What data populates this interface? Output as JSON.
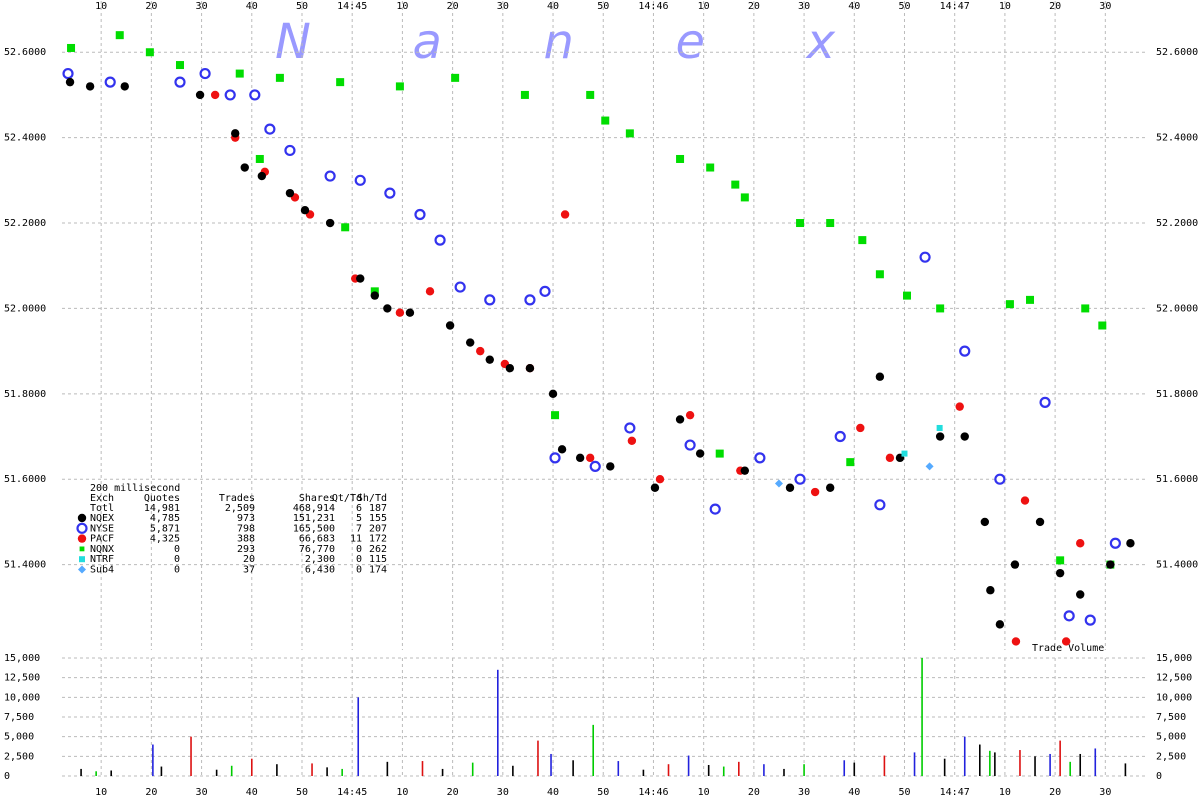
{
  "chart_data": [
    {
      "type": "scatter",
      "watermark": "N a n e x",
      "annotation": "Trade Volume",
      "xlim": [
        2.2,
        218.5
      ],
      "xticks": [
        10,
        20,
        30,
        40,
        50,
        {
          "value": 60,
          "label": "14:45"
        },
        {
          "value": 70,
          "label": "10"
        },
        {
          "value": 80,
          "label": "20"
        },
        {
          "value": 90,
          "label": "30"
        },
        {
          "value": 100,
          "label": "40"
        },
        {
          "value": 110,
          "label": "50"
        },
        {
          "value": 120,
          "label": "14:46"
        },
        {
          "value": 130,
          "label": "10"
        },
        {
          "value": 140,
          "label": "20"
        },
        {
          "value": 150,
          "label": "30"
        },
        {
          "value": 160,
          "label": "40"
        },
        {
          "value": 170,
          "label": "50"
        },
        {
          "value": 180,
          "label": "14:47"
        },
        {
          "value": 190,
          "label": "10"
        },
        {
          "value": 200,
          "label": "20"
        },
        {
          "value": 210,
          "label": "30"
        }
      ],
      "ylim": [
        51.2,
        52.72
      ],
      "yticks": [
        {
          "value": 51.4,
          "label": "51.4000"
        },
        {
          "value": 51.6,
          "label": "51.6000"
        },
        {
          "value": 51.8,
          "label": "51.8000"
        },
        {
          "value": 52.0,
          "label": "52.0000"
        },
        {
          "value": 52.2,
          "label": "52.2000"
        },
        {
          "value": 52.4,
          "label": "52.4000"
        },
        {
          "value": 52.6,
          "label": "52.6000"
        }
      ],
      "grid": true,
      "stats": {
        "caption": "200 millisecond",
        "columns": [
          "Exch",
          "Quotes",
          "Trades",
          "Shares",
          "Qt/Td",
          "Sh/Td"
        ],
        "total": [
          "Totl",
          "14,981",
          "2,509",
          "468,914",
          "6",
          "187"
        ],
        "rows": [
          [
            "4,785",
            "973",
            "151,231",
            "5",
            "155"
          ],
          [
            "5,871",
            "798",
            "165,500",
            "7",
            "207"
          ],
          [
            "4,325",
            "388",
            "66,683",
            "11",
            "172"
          ],
          [
            "0",
            "293",
            "76,770",
            "0",
            "262"
          ],
          [
            "0",
            "20",
            "2,300",
            "0",
            "115"
          ],
          [
            "0",
            "37",
            "6,430",
            "0",
            "174"
          ]
        ]
      },
      "series": [
        {
          "name": "NQNX",
          "color": "#00dd00",
          "marker": "square",
          "x": [
            4,
            13.7,
            19.7,
            25.7,
            37.6,
            45.6,
            57.6,
            69.5,
            80.5,
            94.4,
            107.4,
            110.4,
            115.3,
            125.3,
            131.3,
            136.3,
            138.2,
            149.2,
            155.2,
            161.6,
            165.1,
            170.5,
            177.1,
            191,
            195,
            206,
            209.4,
            41.6,
            58.6,
            64.5,
            100.4,
            133.2,
            159.2,
            201,
            211
          ],
          "values": [
            52.61,
            52.64,
            52.6,
            52.57,
            52.55,
            52.54,
            52.53,
            52.52,
            52.54,
            52.5,
            52.5,
            52.44,
            52.41,
            52.35,
            52.33,
            52.29,
            52.26,
            52.2,
            52.2,
            52.16,
            52.08,
            52.03,
            52.0,
            52.01,
            52.02,
            52.0,
            51.96,
            52.35,
            52.19,
            52.04,
            51.75,
            51.66,
            51.64,
            51.41,
            51.4
          ]
        },
        {
          "name": "PACF",
          "color": "#ee1111",
          "marker": "circle",
          "x": [
            32.7,
            36.7,
            42.6,
            48.6,
            51.6,
            60.6,
            69.5,
            75.5,
            85.5,
            90.4,
            95.4,
            102.4,
            107.4,
            115.7,
            121.3,
            127.3,
            137.3,
            152.2,
            161.2,
            167.1,
            181,
            192.2,
            194,
            202.2,
            205
          ],
          "values": [
            52.5,
            52.4,
            52.32,
            52.26,
            52.22,
            52.07,
            51.99,
            52.04,
            51.9,
            51.87,
            51.86,
            52.22,
            51.65,
            51.69,
            51.6,
            51.75,
            51.62,
            51.57,
            51.72,
            51.65,
            51.77,
            51.22,
            51.55,
            51.22,
            51.45
          ]
        },
        {
          "name": "NYSE",
          "color": "#3333ee",
          "marker": "ring",
          "x": [
            3.4,
            11.8,
            25.7,
            30.7,
            35.7,
            40.6,
            43.6,
            47.6,
            55.6,
            61.6,
            67.5,
            73.5,
            77.5,
            81.5,
            87.4,
            95.4,
            98.4,
            100.4,
            108.4,
            115.3,
            127.3,
            132.3,
            141.2,
            149.2,
            157.2,
            165.1,
            174.1,
            182,
            189,
            198,
            202.8,
            207,
            212
          ],
          "values": [
            52.55,
            52.53,
            52.53,
            52.55,
            52.5,
            52.5,
            52.42,
            52.37,
            52.31,
            52.3,
            52.27,
            52.22,
            52.16,
            52.05,
            52.02,
            52.02,
            52.04,
            51.65,
            51.63,
            51.72,
            51.68,
            51.53,
            51.65,
            51.6,
            51.7,
            51.54,
            52.12,
            51.9,
            51.6,
            51.78,
            51.28,
            51.27,
            51.45
          ]
        },
        {
          "name": "NQEX",
          "color": "#000000",
          "marker": "circle",
          "x": [
            3.8,
            7.8,
            14.7,
            29.7,
            36.7,
            38.6,
            42,
            47.6,
            50.6,
            55.6,
            61.6,
            64.5,
            67,
            71.5,
            79.5,
            83.5,
            87.4,
            91.4,
            95.4,
            100,
            101.8,
            105.4,
            111.4,
            120.3,
            125.3,
            129.3,
            138.2,
            147.2,
            155.2,
            165.1,
            169.1,
            177.1,
            182,
            186,
            187.1,
            189,
            192,
            197,
            201,
            205,
            211,
            215
          ],
          "values": [
            52.53,
            52.52,
            52.52,
            52.5,
            52.41,
            52.33,
            52.31,
            52.27,
            52.23,
            52.2,
            52.07,
            52.03,
            52.0,
            51.99,
            51.96,
            51.92,
            51.88,
            51.86,
            51.86,
            51.8,
            51.67,
            51.65,
            51.63,
            51.58,
            51.74,
            51.66,
            51.62,
            51.58,
            51.58,
            51.84,
            51.65,
            51.7,
            51.7,
            51.5,
            51.34,
            51.26,
            51.4,
            51.5,
            51.38,
            51.33,
            51.4,
            51.45
          ]
        },
        {
          "name": "NTRF",
          "color": "#22dddd",
          "marker": "small-square",
          "x": [
            170,
            177
          ],
          "values": [
            51.66,
            51.72
          ]
        },
        {
          "name": "Sub4",
          "color": "#55aaff",
          "marker": "diamond",
          "x": [
            145,
            175
          ],
          "values": [
            51.59,
            51.63
          ]
        }
      ]
    },
    {
      "type": "bar",
      "ylim": [
        0,
        15000
      ],
      "yticks": [
        0,
        {
          "value": 2500,
          "label": "2,500"
        },
        {
          "value": 5000,
          "label": "5,000"
        },
        {
          "value": 7500,
          "label": "7,500"
        },
        {
          "value": 10000,
          "label": "10,000"
        },
        {
          "value": 12500,
          "label": "12,500"
        },
        {
          "value": 15000,
          "label": "15,000"
        }
      ],
      "series": [
        {
          "color": "#000000",
          "x": [
            6,
            12,
            22,
            33,
            45,
            55,
            67,
            78,
            92,
            104,
            118,
            131,
            146,
            160,
            178,
            185,
            188,
            196,
            205,
            214
          ],
          "values": [
            900,
            700,
            1200,
            800,
            1500,
            1100,
            1800,
            900,
            1300,
            2000,
            800,
            1400,
            900,
            1700,
            2200,
            4000,
            3000,
            2500,
            2800,
            1600
          ]
        },
        {
          "color": "#2222dd",
          "x": [
            20.3,
            61.2,
            89,
            99.6,
            113,
            127,
            142,
            158,
            172,
            182,
            199,
            208
          ],
          "values": [
            4000,
            10000,
            13500,
            2800,
            1900,
            2600,
            1500,
            2000,
            3000,
            5000,
            2800,
            3500
          ]
        },
        {
          "color": "#dd1111",
          "x": [
            27.9,
            40,
            52,
            74,
            97,
            123,
            137,
            166,
            193,
            201
          ],
          "values": [
            5000,
            2200,
            1600,
            1900,
            4500,
            1500,
            1800,
            2600,
            3300,
            4500
          ]
        },
        {
          "color": "#00cc00",
          "x": [
            9,
            36,
            58,
            84,
            108,
            134,
            150,
            173.5,
            187,
            203
          ],
          "values": [
            600,
            1300,
            900,
            1700,
            6500,
            1200,
            1500,
            15000,
            3200,
            1800
          ]
        }
      ]
    }
  ]
}
